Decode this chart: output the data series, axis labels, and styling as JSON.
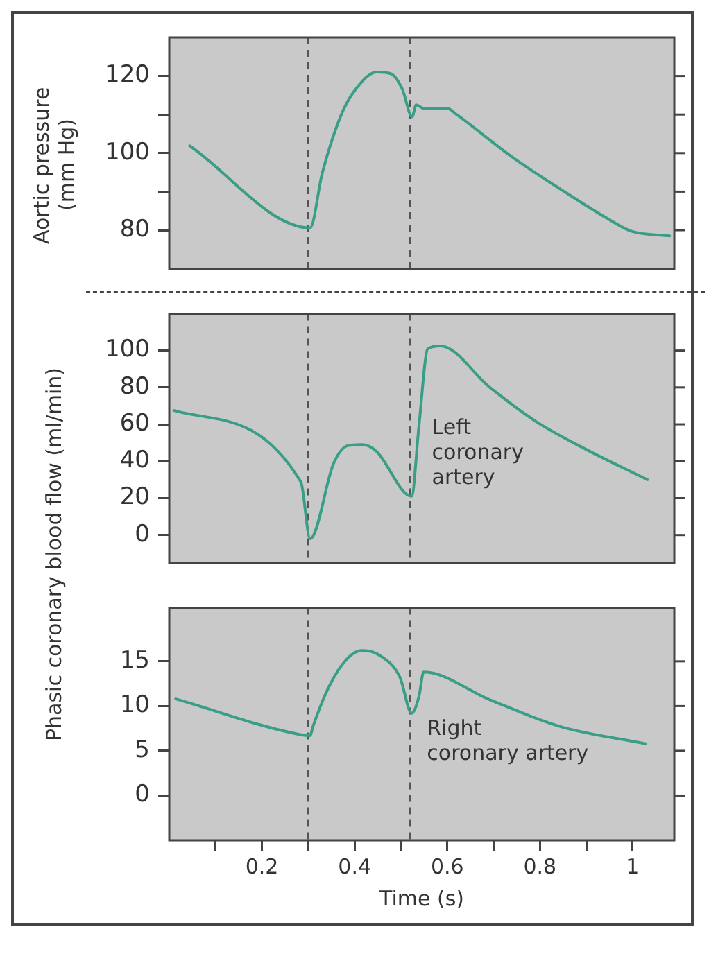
{
  "chart_data": [
    {
      "type": "line",
      "ylabel": "Aortic pressure (mm Hg)",
      "xlim": [
        0,
        1.09
      ],
      "ylim": [
        70,
        130
      ],
      "yticks": [
        80,
        {
          "value": 90,
          "label": null
        },
        100,
        {
          "value": 110,
          "label": null
        },
        120
      ],
      "tick_labels": "y",
      "grid": false,
      "legend": false,
      "marker": "none",
      "line_style": "solid",
      "ref_lines": [
        {
          "axis": "x",
          "value": 0.3,
          "color": "#555555",
          "line_style": "dashed"
        },
        {
          "axis": "x",
          "value": 0.52,
          "color": "#555555",
          "line_style": "dashed"
        }
      ],
      "series": [
        {
          "color": "#3a9e86",
          "x": [
            0.044,
            0.304,
            0.33,
            0.375,
            0.417,
            0.447,
            0.478,
            0.503,
            0.524,
            0.533,
            0.549,
            0.6,
            0.62,
            0.742,
            0.845,
            0.946,
            0.998,
            1.08
          ],
          "values": [
            101.9,
            80.6,
            94.7,
            111,
            118.7,
            121,
            120.6,
            116.6,
            109.4,
            112.5,
            111.6,
            111.6,
            110,
            98.8,
            90.6,
            83,
            79.7,
            78.5
          ]
        }
      ]
    },
    {
      "type": "line",
      "ylabel": "Phasic coronary blood flow (ml/min)",
      "xlim": [
        0,
        1.09
      ],
      "ylim": [
        -15,
        120
      ],
      "yticks": [
        0,
        20,
        40,
        60,
        80,
        100
      ],
      "tick_labels": "y",
      "grid": false,
      "legend": false,
      "marker": "none",
      "line_style": "solid",
      "ref_lines": [
        {
          "axis": "x",
          "value": 0.3,
          "color": "#555555",
          "line_style": "dashed"
        },
        {
          "axis": "x",
          "value": 0.52,
          "color": "#555555",
          "line_style": "dashed"
        }
      ],
      "series": [
        {
          "name": "Left coronary artery",
          "color": "#3a9e86",
          "x": [
            0.01,
            0.284,
            0.304,
            0.355,
            0.386,
            0.417,
            0.447,
            0.523,
            0.539,
            0.558,
            0.585,
            0.692,
            0.793,
            0.895,
            1.032
          ],
          "values": [
            67.5,
            28.8,
            -2,
            39,
            48.5,
            49,
            45.4,
            21,
            59.5,
            101,
            102.5,
            80,
            61.3,
            47,
            30
          ]
        }
      ]
    },
    {
      "type": "line",
      "xlabel": "Time (s)",
      "xlim": [
        0,
        1.09
      ],
      "xticks": [
        {
          "value": 0.1,
          "label": null
        },
        0.2,
        {
          "value": 0.3,
          "label": null
        },
        0.4,
        {
          "value": 0.5,
          "label": null
        },
        0.6,
        {
          "value": 0.7,
          "label": null
        },
        0.8,
        {
          "value": 0.9,
          "label": null
        },
        1
      ],
      "ylim": [
        -5,
        21
      ],
      "yticks": [
        0,
        5,
        10,
        15
      ],
      "grid": false,
      "legend": false,
      "marker": "none",
      "line_style": "solid",
      "ref_lines": [
        {
          "axis": "x",
          "value": 0.3,
          "color": "#555555",
          "line_style": "dashed"
        },
        {
          "axis": "x",
          "value": 0.52,
          "color": "#555555",
          "line_style": "dashed"
        }
      ],
      "series": [
        {
          "name": "Right coronary artery",
          "color": "#3a9e86",
          "x": [
            0.014,
            0.284,
            0.304,
            0.31,
            0.345,
            0.386,
            0.417,
            0.456,
            0.498,
            0.523,
            0.539,
            0.549,
            0.692,
            0.845,
            1.028
          ],
          "values": [
            10.8,
            6.8,
            6.7,
            7.7,
            12.2,
            15.4,
            16.2,
            15.6,
            13.2,
            9.2,
            11.1,
            13.8,
            10.7,
            7.7,
            5.8
          ]
        }
      ]
    }
  ]
}
